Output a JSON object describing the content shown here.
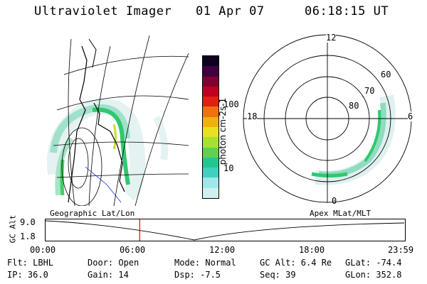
{
  "header": {
    "instrument": "Ultraviolet Imager",
    "date": "01 Apr 07",
    "time": "06:18:15 UT"
  },
  "colorbar": {
    "label": "photon cm-2s-1",
    "ticks": [
      "100",
      "10"
    ],
    "colors": [
      "#d0f0f0",
      "#a0e8e8",
      "#40d0c0",
      "#20c890",
      "#60d050",
      "#a8e030",
      "#e8e020",
      "#f0b010",
      "#f07010",
      "#e02010",
      "#c00020",
      "#800030",
      "#400040",
      "#100020"
    ]
  },
  "polar": {
    "mlt_labels": {
      "top": "12",
      "left": "18",
      "right": "6",
      "bottom": "0"
    },
    "lat_labels": [
      "60",
      "70",
      "80"
    ]
  },
  "timeline": {
    "left_label": "Geographic Lat/Lon",
    "right_label": "Apex MLat/MLT",
    "axis_title": "GC Alt",
    "y_ticks": [
      "9.0",
      "1.8"
    ],
    "x_ticks": [
      "00:00",
      "06:00",
      "12:00",
      "18:00",
      "23:59"
    ],
    "current_fraction": 0.262
  },
  "info": {
    "row1": [
      {
        "k": "Flt:",
        "v": "LBHL"
      },
      {
        "k": "Door:",
        "v": "Open"
      },
      {
        "k": "Mode:",
        "v": "Normal"
      },
      {
        "k": "GC Alt:",
        "v": "6.4 Re"
      },
      {
        "k": "GLat:",
        "v": "-74.4"
      }
    ],
    "row2": [
      {
        "k": "IP:",
        "v": "36.0"
      },
      {
        "k": "Gain:",
        "v": "14"
      },
      {
        "k": "Dsp:",
        "v": "-7.5"
      },
      {
        "k": "Seq:",
        "v": "39"
      },
      {
        "k": "GLon:",
        "v": "352.8"
      }
    ]
  },
  "colors": {
    "marker": "#e00000",
    "aurora_bright": "#30c870",
    "aurora_mid": "#90e0c0",
    "aurora_faint": "#e0f0f0"
  }
}
